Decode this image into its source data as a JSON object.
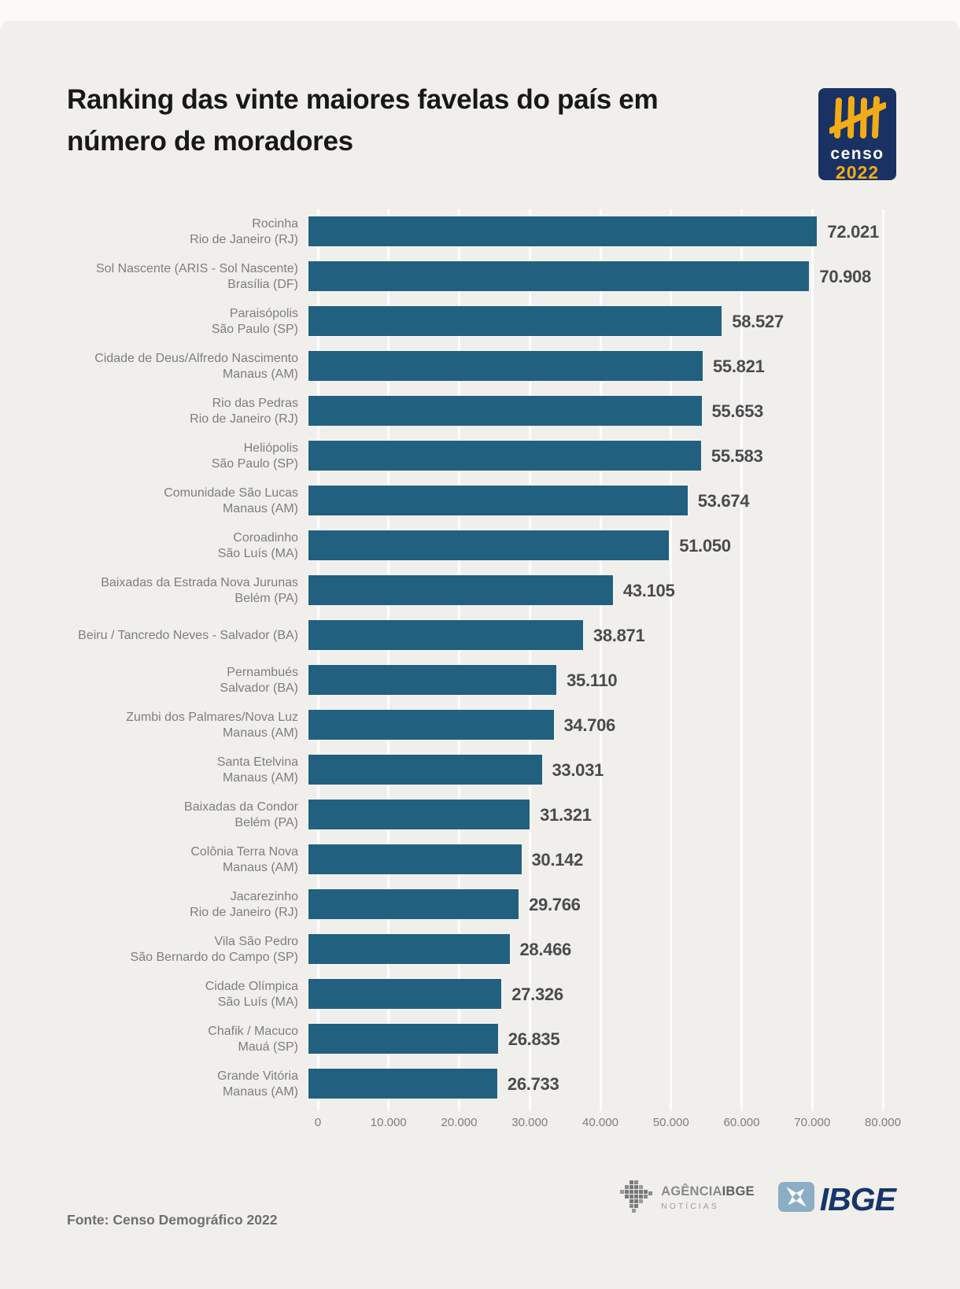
{
  "header": {
    "title_lines": [
      "Ranking das vinte maiores favelas do país em",
      "número de moradores"
    ],
    "censo_logo": {
      "word": "censo",
      "year": "2022"
    }
  },
  "chart_data": {
    "type": "bar",
    "orientation": "horizontal",
    "title": "Ranking das vinte maiores favelas do país em número de moradores",
    "xlabel": "",
    "ylabel": "",
    "xlim": [
      0,
      80000
    ],
    "grid": true,
    "x_ticks": [
      "0",
      "10.000",
      "20.000",
      "30.000",
      "40.000",
      "50.000",
      "60.000",
      "70.000",
      "80.000"
    ],
    "x_tick_values": [
      0,
      10000,
      20000,
      30000,
      40000,
      50000,
      60000,
      70000,
      80000
    ],
    "bar_color": "#21617F",
    "background_color": "#F1EFEC",
    "items": [
      {
        "name": "Rocinha",
        "city": "Rio de Janeiro (RJ)",
        "value": 72021,
        "display": "72.021"
      },
      {
        "name": "Sol Nascente (ARIS - Sol Nascente)",
        "city": "Brasília (DF)",
        "value": 70908,
        "display": "70.908"
      },
      {
        "name": "Paraisópolis",
        "city": "São Paulo (SP)",
        "value": 58527,
        "display": "58.527"
      },
      {
        "name": "Cidade de Deus/Alfredo Nascimento",
        "city": "Manaus (AM)",
        "value": 55821,
        "display": "55.821"
      },
      {
        "name": "Rio das Pedras",
        "city": "Rio de Janeiro (RJ)",
        "value": 55653,
        "display": "55.653"
      },
      {
        "name": "Heliópolis",
        "city": "São Paulo (SP)",
        "value": 55583,
        "display": "55.583"
      },
      {
        "name": "Comunidade São Lucas",
        "city": "Manaus (AM)",
        "value": 53674,
        "display": "53.674"
      },
      {
        "name": "Coroadinho",
        "city": "São Luís (MA)",
        "value": 51050,
        "display": "51.050"
      },
      {
        "name": "Baixadas da Estrada Nova Jurunas",
        "city": "Belém (PA)",
        "value": 43105,
        "display": "43.105"
      },
      {
        "name": "Beiru / Tancredo Neves - Salvador (BA)",
        "city": "",
        "value": 38871,
        "display": "38.871"
      },
      {
        "name": "Pernambués",
        "city": "Salvador (BA)",
        "value": 35110,
        "display": "35.110"
      },
      {
        "name": "Zumbi dos Palmares/Nova Luz",
        "city": "Manaus (AM)",
        "value": 34706,
        "display": "34.706"
      },
      {
        "name": "Santa Etelvina",
        "city": "Manaus (AM)",
        "value": 33031,
        "display": "33.031"
      },
      {
        "name": "Baixadas da Condor",
        "city": "Belém (PA)",
        "value": 31321,
        "display": "31.321"
      },
      {
        "name": "Colônia Terra Nova",
        "city": "Manaus (AM)",
        "value": 30142,
        "display": "30.142"
      },
      {
        "name": "Jacarezinho",
        "city": "Rio de Janeiro (RJ)",
        "value": 29766,
        "display": "29.766"
      },
      {
        "name": "Vila São Pedro",
        "city": "São Bernardo do Campo (SP)",
        "value": 28466,
        "display": "28.466"
      },
      {
        "name": "Cidade Olímpica",
        "city": "São Luís (MA)",
        "value": 27326,
        "display": "27.326"
      },
      {
        "name": "Chafik / Macuco",
        "city": "Mauá (SP)",
        "value": 26835,
        "display": "26.835"
      },
      {
        "name": "Grande Vitória",
        "city": "Manaus (AM)",
        "value": 26733,
        "display": "26.733"
      }
    ]
  },
  "footer": {
    "source": "Fonte: Censo Demográfico 2022",
    "agencia_word1": "AGÊNCIA",
    "agencia_word2": "IBGE",
    "agencia_subtitle": "NOTÍCIAS",
    "ibge_label": "IBGE"
  },
  "colors": {
    "bar": "#21617F",
    "card_background": "#F1EFEC",
    "censo_navy": "#1A3263",
    "censo_yellow": "#F2AC18",
    "ibge_navy": "#16366B",
    "ibge_icon_blue": "#8CADC6"
  }
}
